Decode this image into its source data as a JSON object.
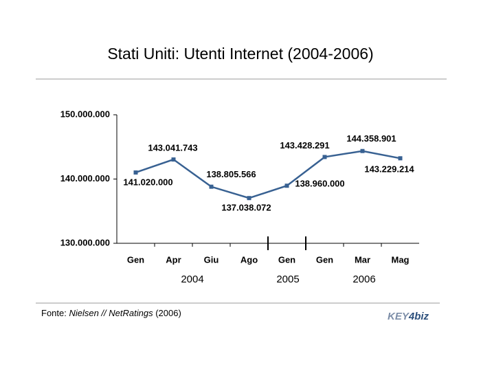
{
  "chart_data": {
    "type": "line",
    "title": "Stati Uniti: Utenti Internet (2004-2006)",
    "categories": [
      "Gen",
      "Apr",
      "Giu",
      "Ago",
      "Gen",
      "Gen",
      "Mar",
      "Mag"
    ],
    "year_labels": [
      "2004",
      "2005",
      "2006"
    ],
    "values": [
      141020000,
      143041743,
      138805566,
      137038072,
      138960000,
      143428291,
      144358901,
      143229214
    ],
    "value_labels": [
      "141.020.000",
      "143.041.743",
      "138.805.566",
      "137.038.072",
      "138.960.000",
      "143.428.291",
      "144.358.901",
      "143.229.214"
    ],
    "color": "#386192",
    "ylim": [
      130000000,
      150000000
    ],
    "yticks": [
      {
        "value": 130000000,
        "label": "130.000.000"
      },
      {
        "value": 140000000,
        "label": "140.000.000"
      },
      {
        "value": 150000000,
        "label": "150.000.000"
      }
    ],
    "source": {
      "prefix": "Fonte: ",
      "name": "Nielsen // NetRatings",
      "suffix": " (2006)"
    },
    "logo": {
      "part1": "KEY",
      "part2": "4",
      "part3": "biz"
    }
  }
}
